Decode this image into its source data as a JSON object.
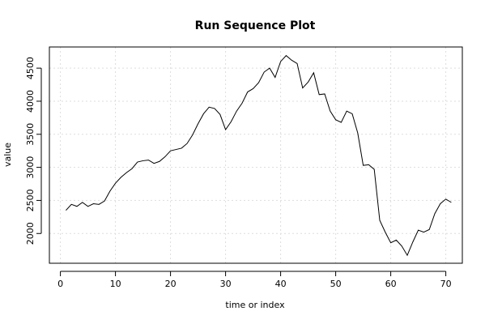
{
  "chart_data": {
    "type": "line",
    "title": "Run Sequence Plot",
    "xlabel": "time or index",
    "ylabel": "value",
    "xlim": [
      -2,
      73
    ],
    "ylim": [
      1550,
      4820
    ],
    "xticks": [
      0,
      10,
      20,
      30,
      40,
      50,
      60,
      70
    ],
    "yticks": [
      2000,
      2500,
      3000,
      3500,
      4000,
      4500
    ],
    "grid": true,
    "series": [
      {
        "x": [
          1,
          2,
          3,
          4,
          5,
          6,
          7,
          8,
          9,
          10,
          11,
          12,
          13,
          14,
          15,
          16,
          17,
          18,
          19,
          20,
          21,
          22,
          23,
          24,
          25,
          26,
          27,
          28,
          29,
          30,
          31,
          32,
          33,
          34,
          35,
          36,
          37,
          38,
          39,
          40,
          41,
          42,
          43,
          44,
          45,
          46,
          47,
          48,
          49,
          50,
          51,
          52,
          53,
          54,
          55,
          56,
          57,
          58,
          59,
          60,
          61,
          62,
          63,
          64,
          65,
          66,
          67,
          68,
          69,
          70,
          71
        ],
        "values": [
          2350,
          2440,
          2410,
          2470,
          2410,
          2450,
          2440,
          2490,
          2640,
          2760,
          2850,
          2920,
          2980,
          3080,
          3100,
          3110,
          3060,
          3090,
          3160,
          3250,
          3270,
          3290,
          3360,
          3490,
          3660,
          3810,
          3910,
          3890,
          3800,
          3570,
          3690,
          3850,
          3970,
          4140,
          4190,
          4280,
          4440,
          4500,
          4360,
          4600,
          4690,
          4620,
          4570,
          4200,
          4290,
          4430,
          4100,
          4110,
          3850,
          3720,
          3680,
          3850,
          3810,
          3520,
          3030,
          3040,
          2970,
          2200,
          2020,
          1860,
          1900,
          1810,
          1670,
          1870,
          2050,
          2020,
          2060,
          2300,
          2450,
          2520,
          2470
        ]
      }
    ]
  }
}
